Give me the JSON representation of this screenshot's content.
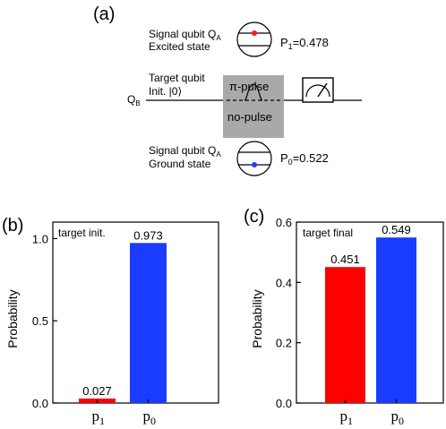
{
  "panel_a": {
    "label": "(a)",
    "signal_excited_line1": "Signal qubit Q",
    "signal_excited_sub": "A",
    "signal_excited_line2": "Excited state",
    "p1_text": "P",
    "p1_sub": "1",
    "p1_value": "=0.478",
    "target_line1": "Target qubit",
    "target_line2": "Init. |0⟩",
    "qb_label": "Q",
    "qb_sub": "B",
    "pi_pulse": "π-pulse",
    "no_pulse": "no-pulse",
    "signal_ground_line1": "Signal qubit Q",
    "signal_ground_sub": "A",
    "signal_ground_line2": "Ground state",
    "p0_text": "P",
    "p0_sub": "0",
    "p0_value": "=0.522",
    "excited_dot_color": "#ff1a1a",
    "ground_dot_color": "#1a3cff",
    "gate_box_color": "#a9a9a9"
  },
  "chart_data": [
    {
      "panel": "(b)",
      "type": "bar",
      "title": "target init.",
      "ylabel": "Probability",
      "categories": [
        "p",
        "p"
      ],
      "category_subscripts": [
        "1",
        "0"
      ],
      "values": [
        0.027,
        0.973
      ],
      "value_labels": [
        "0.027",
        "0.973"
      ],
      "colors": [
        "#ff0000",
        "#1a3cff"
      ],
      "ylim": [
        0,
        1.1
      ],
      "yticks": [
        0.0,
        0.5,
        1.0
      ],
      "ytick_labels": [
        "0.0",
        "0.5",
        "1.0"
      ]
    },
    {
      "panel": "(c)",
      "type": "bar",
      "title": "target final",
      "ylabel": "Probability",
      "categories": [
        "p",
        "p"
      ],
      "category_subscripts": [
        "1",
        "0"
      ],
      "values": [
        0.451,
        0.549
      ],
      "value_labels": [
        "0.451",
        "0.549"
      ],
      "colors": [
        "#ff0000",
        "#1a3cff"
      ],
      "ylim": [
        0,
        0.6
      ],
      "yticks": [
        0.0,
        0.2,
        0.4,
        0.6
      ],
      "ytick_labels": [
        "0.0",
        "0.2",
        "0.4",
        "0.6"
      ]
    }
  ]
}
